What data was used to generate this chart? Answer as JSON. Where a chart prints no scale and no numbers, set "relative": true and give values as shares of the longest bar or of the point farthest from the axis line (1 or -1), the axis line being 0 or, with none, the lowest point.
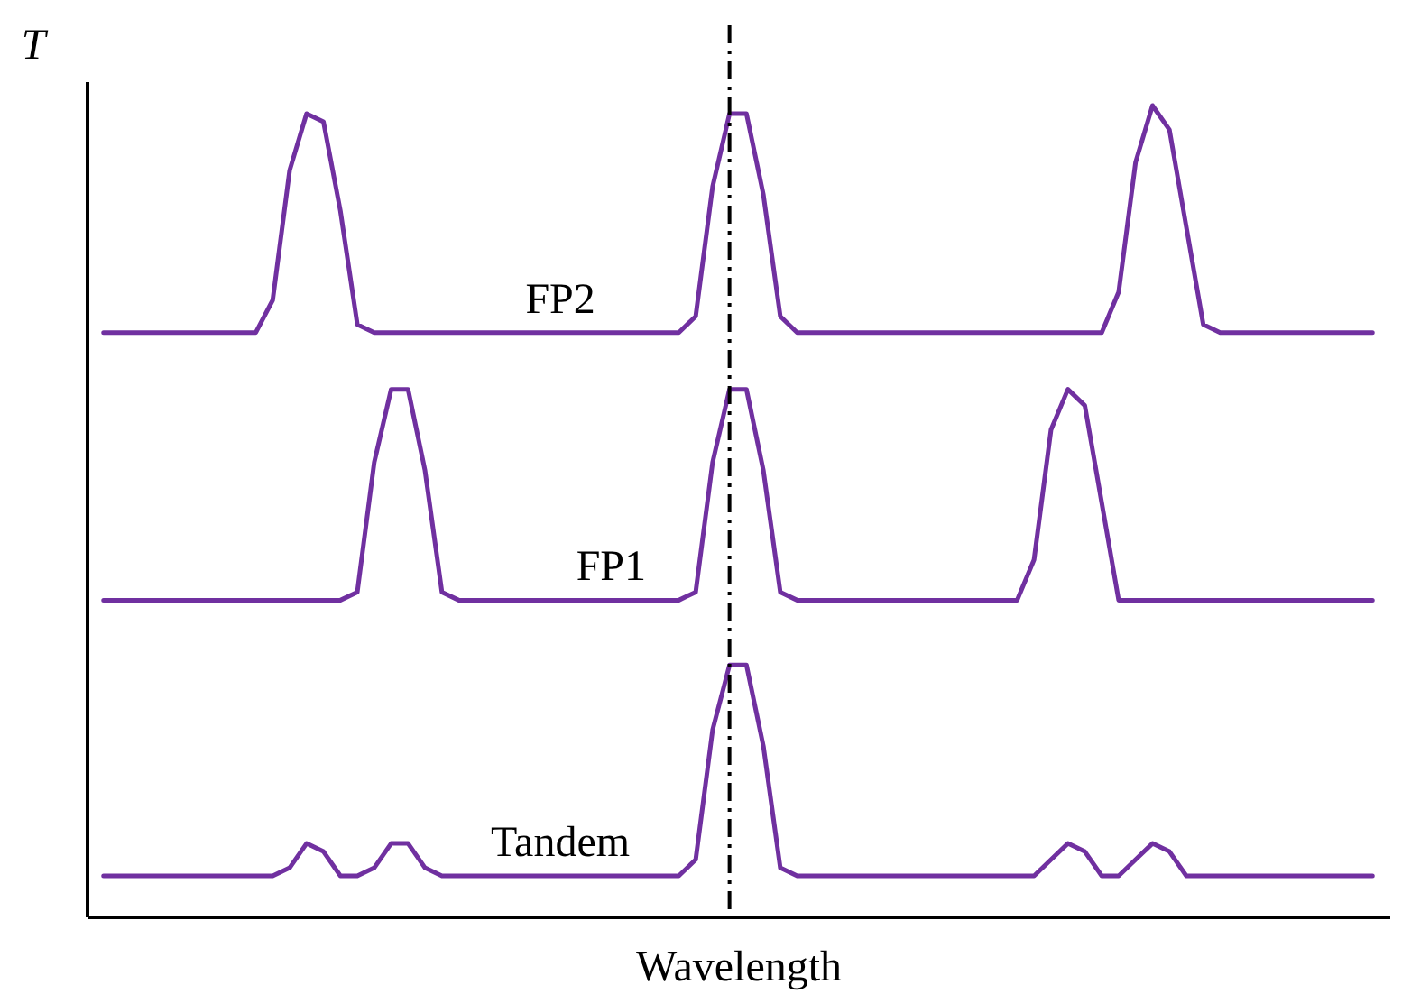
{
  "chart_data": {
    "type": "line",
    "relative": true,
    "xlabel": "Wavelength",
    "ylabel": "T",
    "legend": false,
    "marker": "none",
    "line_style": "solid",
    "categories": [
      null,
      null,
      null,
      null,
      null,
      null,
      null,
      null,
      null,
      null,
      null,
      null,
      null,
      null,
      null,
      null,
      null,
      null,
      null,
      null,
      null,
      null,
      null,
      null,
      null,
      null,
      null,
      null,
      null,
      null,
      null,
      null,
      null,
      null,
      null,
      null,
      null,
      null,
      null,
      null,
      null,
      null,
      null,
      null,
      null,
      null,
      null,
      null,
      null,
      null,
      null,
      null,
      null,
      null,
      null,
      null,
      null,
      null,
      null,
      null,
      null,
      null,
      null,
      null,
      null,
      null,
      null,
      null,
      null,
      null,
      null,
      null,
      null,
      null,
      null,
      null
    ],
    "series": [
      {
        "name": "FP2",
        "color": "#7030a0",
        "values": [
          0.72,
          0.72,
          0.72,
          0.72,
          0.72,
          0.72,
          0.72,
          0.72,
          0.72,
          0.72,
          0.76,
          0.92,
          0.99,
          0.98,
          0.87,
          0.73,
          0.72,
          0.72,
          0.72,
          0.72,
          0.72,
          0.72,
          0.72,
          0.72,
          0.72,
          0.72,
          0.72,
          0.72,
          0.72,
          0.72,
          0.72,
          0.72,
          0.72,
          0.72,
          0.72,
          0.74,
          0.9,
          0.99,
          0.99,
          0.89,
          0.74,
          0.72,
          0.72,
          0.72,
          0.72,
          0.72,
          0.72,
          0.72,
          0.72,
          0.72,
          0.72,
          0.72,
          0.72,
          0.72,
          0.72,
          0.72,
          0.72,
          0.72,
          0.72,
          0.72,
          0.77,
          0.93,
          1,
          0.97,
          0.85,
          0.73,
          0.72,
          0.72,
          0.72,
          0.72,
          0.72,
          0.72,
          0.72,
          0.72,
          0.72,
          0.72
        ]
      },
      {
        "name": "FP1",
        "color": "#7030a0",
        "values": [
          0.39,
          0.39,
          0.39,
          0.39,
          0.39,
          0.39,
          0.39,
          0.39,
          0.39,
          0.39,
          0.39,
          0.39,
          0.39,
          0.39,
          0.39,
          0.4,
          0.56,
          0.65,
          0.65,
          0.55,
          0.4,
          0.39,
          0.39,
          0.39,
          0.39,
          0.39,
          0.39,
          0.39,
          0.39,
          0.39,
          0.39,
          0.39,
          0.39,
          0.39,
          0.39,
          0.4,
          0.56,
          0.65,
          0.65,
          0.55,
          0.4,
          0.39,
          0.39,
          0.39,
          0.39,
          0.39,
          0.39,
          0.39,
          0.39,
          0.39,
          0.39,
          0.39,
          0.39,
          0.39,
          0.39,
          0.44,
          0.6,
          0.65,
          0.63,
          0.51,
          0.39,
          0.39,
          0.39,
          0.39,
          0.39,
          0.39,
          0.39,
          0.39,
          0.39,
          0.39,
          0.39,
          0.39,
          0.39,
          0.39,
          0.39,
          0.39
        ]
      },
      {
        "name": "Tandem",
        "color": "#7030a0",
        "values": [
          0.05,
          0.05,
          0.05,
          0.05,
          0.05,
          0.05,
          0.05,
          0.05,
          0.05,
          0.05,
          0.05,
          0.06,
          0.09,
          0.08,
          0.05,
          0.05,
          0.06,
          0.09,
          0.09,
          0.06,
          0.05,
          0.05,
          0.05,
          0.05,
          0.05,
          0.05,
          0.05,
          0.05,
          0.05,
          0.05,
          0.05,
          0.05,
          0.05,
          0.05,
          0.05,
          0.07,
          0.23,
          0.31,
          0.31,
          0.21,
          0.06,
          0.05,
          0.05,
          0.05,
          0.05,
          0.05,
          0.05,
          0.05,
          0.05,
          0.05,
          0.05,
          0.05,
          0.05,
          0.05,
          0.05,
          0.05,
          0.07,
          0.09,
          0.08,
          0.05,
          0.05,
          0.07,
          0.09,
          0.08,
          0.05,
          0.05,
          0.05,
          0.05,
          0.05,
          0.05,
          0.05,
          0.05,
          0.05,
          0.05,
          0.05,
          0.05
        ]
      }
    ]
  }
}
